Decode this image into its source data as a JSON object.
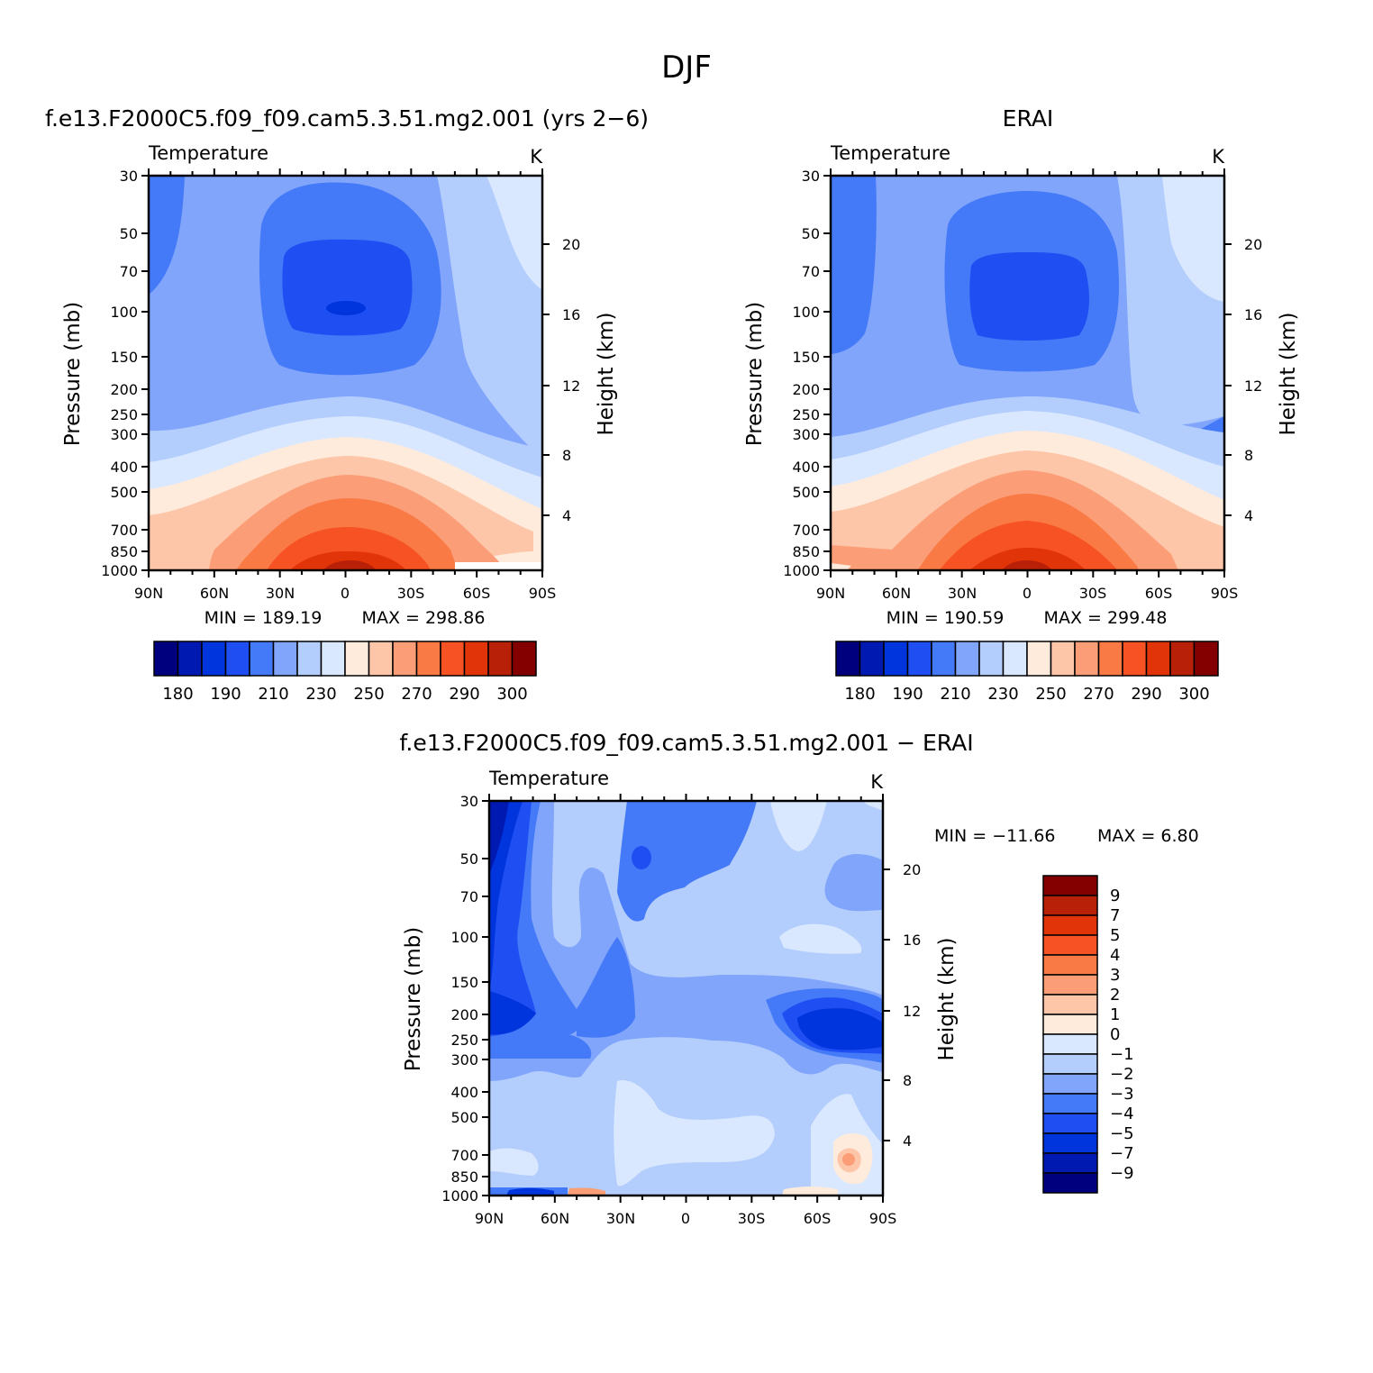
{
  "title": "DJF",
  "chart_data": [
    {
      "type": "heatmap",
      "panel_title": "f.e13.F2000C5.f09_f09.cam5.3.51.mg2.001 (yrs 2−6)",
      "variable": "Temperature",
      "units": "K",
      "ylabel": "Pressure (mb)",
      "ylabel_right": "Height (km)",
      "xticks": [
        "90N",
        "60N",
        "30N",
        "0",
        "30S",
        "60S",
        "90S"
      ],
      "yticks": [
        "30",
        "50",
        "70",
        "100",
        "150",
        "200",
        "250",
        "300",
        "400",
        "500",
        "700",
        "850",
        "1000"
      ],
      "yticks_right": [
        "20",
        "16",
        "12",
        "8",
        "4"
      ],
      "min_label": "MIN = 189.19",
      "max_label": "MAX = 298.86",
      "min": 189.19,
      "max": 298.86,
      "colorbar_labels": [
        "180",
        "190",
        "210",
        "230",
        "250",
        "270",
        "290",
        "300"
      ]
    },
    {
      "type": "heatmap",
      "panel_title": "ERAI",
      "variable": "Temperature",
      "units": "K",
      "ylabel": "Pressure (mb)",
      "ylabel_right": "Height (km)",
      "xticks": [
        "90N",
        "60N",
        "30N",
        "0",
        "30S",
        "60S",
        "90S"
      ],
      "yticks": [
        "30",
        "50",
        "70",
        "100",
        "150",
        "200",
        "250",
        "300",
        "400",
        "500",
        "700",
        "850",
        "1000"
      ],
      "yticks_right": [
        "20",
        "16",
        "12",
        "8",
        "4"
      ],
      "min_label": "MIN = 190.59",
      "max_label": "MAX = 299.48",
      "min": 190.59,
      "max": 299.48,
      "colorbar_labels": [
        "180",
        "190",
        "210",
        "230",
        "250",
        "270",
        "290",
        "300"
      ]
    },
    {
      "type": "heatmap",
      "panel_title": "f.e13.F2000C5.f09_f09.cam5.3.51.mg2.001 − ERAI",
      "variable": "Temperature",
      "units": "K",
      "ylabel": "Pressure (mb)",
      "ylabel_right": "Height (km)",
      "xticks": [
        "90N",
        "60N",
        "30N",
        "0",
        "30S",
        "60S",
        "90S"
      ],
      "yticks": [
        "30",
        "50",
        "70",
        "100",
        "150",
        "200",
        "250",
        "300",
        "400",
        "500",
        "700",
        "850",
        "1000"
      ],
      "yticks_right": [
        "20",
        "16",
        "12",
        "8",
        "4"
      ],
      "min_label": "MIN = −11.66",
      "max_label": "MAX = 6.80",
      "min": -11.66,
      "max": 6.8,
      "colorbar_labels": [
        "9",
        "7",
        "5",
        "4",
        "3",
        "2",
        "1",
        "0",
        "−1",
        "−2",
        "−3",
        "−4",
        "−5",
        "−7",
        "−9"
      ]
    }
  ],
  "colors": {
    "absolute_scale": [
      "#00007f",
      "#0019b1",
      "#0034dc",
      "#1f4ff2",
      "#4479f7",
      "#81a5fb",
      "#b3cdfc",
      "#d9e8fe",
      "#ffebdc",
      "#fdc6a9",
      "#fb9e78",
      "#fa7a45",
      "#f65223",
      "#e13408",
      "#b82107",
      "#840000"
    ],
    "diff_scale": [
      "#840000",
      "#b82107",
      "#e13408",
      "#f65223",
      "#fa7a45",
      "#fb9e78",
      "#fdc6a9",
      "#ffebdc",
      "#d9e8fe",
      "#b3cdfc",
      "#81a5fb",
      "#4479f7",
      "#1f4ff2",
      "#0034dc",
      "#0019b1",
      "#00007f"
    ]
  }
}
